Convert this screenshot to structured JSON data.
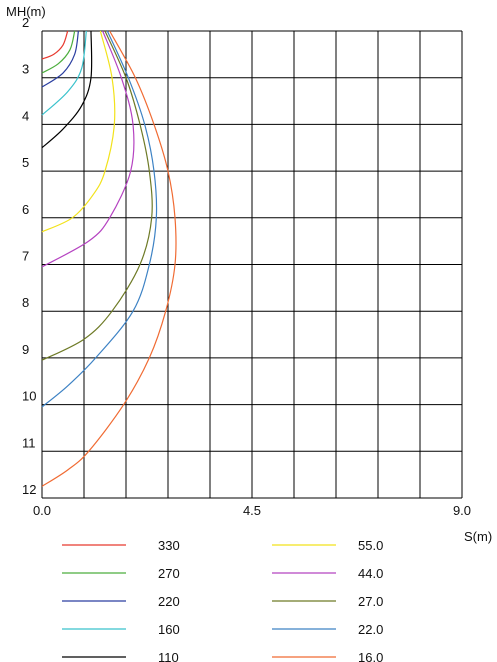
{
  "chart_data": {
    "type": "line",
    "xlabel": "S(m)",
    "ylabel": "MH(m)",
    "xlim": [
      0,
      9
    ],
    "ylim": [
      2,
      12
    ],
    "y_inverted": true,
    "x_ticks": [
      "0.0",
      "4.5",
      "9.0"
    ],
    "y_ticks": [
      "2",
      "3",
      "4",
      "5",
      "6",
      "7",
      "8",
      "9",
      "10",
      "11",
      "12"
    ],
    "grid": true,
    "legend_position": "bottom",
    "series": [
      {
        "name": "330",
        "color": "#e8392f",
        "mh": [
          2,
          2.3,
          2.5,
          2.6
        ],
        "s": [
          0.55,
          0.45,
          0.25,
          0
        ]
      },
      {
        "name": "270",
        "color": "#4cae3d",
        "mh": [
          2,
          2.4,
          2.7,
          2.9
        ],
        "s": [
          0.7,
          0.6,
          0.35,
          0
        ]
      },
      {
        "name": "220",
        "color": "#2a3ea0",
        "mh": [
          2,
          2.5,
          2.9,
          3.2
        ],
        "s": [
          0.78,
          0.7,
          0.45,
          0
        ]
      },
      {
        "name": "160",
        "color": "#39c2cc",
        "mh": [
          2,
          2.8,
          3.3,
          3.8
        ],
        "s": [
          0.95,
          0.85,
          0.55,
          0
        ]
      },
      {
        "name": "110",
        "color": "#000000",
        "mh": [
          2,
          3.0,
          3.6,
          4.1,
          4.5
        ],
        "s": [
          1.05,
          1.05,
          0.85,
          0.45,
          0
        ]
      },
      {
        "name": "55.0",
        "color": "#f2e21a",
        "mh": [
          2,
          3,
          4,
          5,
          5.5,
          6,
          6.3
        ],
        "s": [
          1.25,
          1.5,
          1.55,
          1.35,
          1.1,
          0.65,
          0
        ]
      },
      {
        "name": "44.0",
        "color": "#b543c1",
        "mh": [
          2,
          3,
          4,
          5,
          6,
          6.5,
          7.05
        ],
        "s": [
          1.3,
          1.7,
          1.95,
          1.9,
          1.45,
          1.0,
          0
        ]
      },
      {
        "name": "27.0",
        "color": "#6e7a26",
        "mh": [
          2,
          3,
          4,
          5,
          6,
          7,
          8,
          8.6,
          9.05
        ],
        "s": [
          1.35,
          1.8,
          2.1,
          2.3,
          2.35,
          2.1,
          1.5,
          0.9,
          0
        ]
      },
      {
        "name": "22.0",
        "color": "#3d82c4",
        "mh": [
          2,
          3,
          4,
          5,
          6,
          7,
          8,
          9,
          9.6,
          10.05
        ],
        "s": [
          1.4,
          1.85,
          2.2,
          2.4,
          2.45,
          2.3,
          1.95,
          1.15,
          0.55,
          0
        ]
      },
      {
        "name": "16.0",
        "color": "#f06b33",
        "mh": [
          2,
          3,
          4,
          5,
          6,
          7,
          8,
          9,
          10,
          11,
          11.4,
          11.75
        ],
        "s": [
          1.45,
          2.0,
          2.4,
          2.7,
          2.85,
          2.85,
          2.65,
          2.3,
          1.75,
          1.0,
          0.55,
          0
        ]
      }
    ]
  }
}
